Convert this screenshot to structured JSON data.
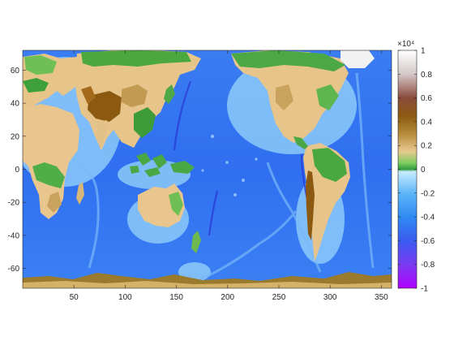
{
  "chart_data": {
    "type": "heatmap",
    "title": "",
    "xlabel": "",
    "ylabel": "",
    "xlim": [
      0,
      360
    ],
    "ylim": [
      -72,
      72
    ],
    "x_ticks": [
      50,
      100,
      150,
      200,
      250,
      300,
      350
    ],
    "y_ticks": [
      60,
      40,
      20,
      0,
      -20,
      -40,
      -60
    ],
    "colorbar": {
      "multiplier_label": "×10⁴",
      "range": [
        -10000,
        10000
      ],
      "ticks": [
        1,
        0.8,
        0.6,
        0.4,
        0.2,
        0,
        -0.2,
        -0.4,
        -0.6,
        -0.8,
        -1
      ],
      "colormap": "topographic elevation / bathymetry",
      "stops": [
        {
          "value": -1.0,
          "color": "#b000ff"
        },
        {
          "value": -0.8,
          "color": "#7a3cf0"
        },
        {
          "value": -0.6,
          "color": "#3a5cf0"
        },
        {
          "value": -0.4,
          "color": "#2f8af2"
        },
        {
          "value": -0.2,
          "color": "#5fb6f8"
        },
        {
          "value": -0.02,
          "color": "#c8ecff"
        },
        {
          "value": 0.0,
          "color": "#2e9b3c"
        },
        {
          "value": 0.05,
          "color": "#7ccc5e"
        },
        {
          "value": 0.15,
          "color": "#e7c98f"
        },
        {
          "value": 0.3,
          "color": "#b58a3a"
        },
        {
          "value": 0.45,
          "color": "#8b5a10"
        },
        {
          "value": 0.6,
          "color": "#8a4a3c"
        },
        {
          "value": 0.8,
          "color": "#d4c8c8"
        },
        {
          "value": 1.0,
          "color": "#ffffff"
        }
      ]
    },
    "grid": false,
    "legend": "none"
  }
}
